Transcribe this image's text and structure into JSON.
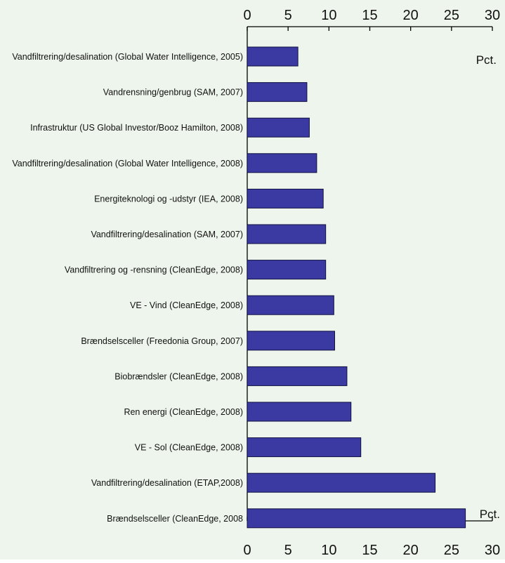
{
  "colors": {
    "background": "#eef5ec",
    "bar_fill": "#3b3aa3",
    "bar_stroke": "#101040",
    "axis": "#000000",
    "text": "#111111"
  },
  "chart_data": {
    "type": "bar",
    "orientation": "horizontal",
    "categories": [
      "Vandfiltrering/desalination (Global Water Intelligence, 2005)",
      "Vandrensning/genbrug (SAM, 2007)",
      "Infrastruktur (US Global Investor/Booz Hamilton, 2008)",
      "Vandfiltrering/desalination (Global Water Intelligence, 2008)",
      "Energiteknologi og -udstyr (IEA, 2008)",
      "Vandfiltrering/desalination (SAM, 2007)",
      "Vandfiltrering og -rensning (CleanEdge, 2008)",
      "VE - Vind (CleanEdge, 2008)",
      "Brændselsceller (Freedonia Group, 2007)",
      "Biobrændsler (CleanEdge, 2008)",
      "Ren energi (CleanEdge, 2008)",
      "VE - Sol (CleanEdge, 2008)",
      "Vandfiltrering/desalination (ETAP,2008)",
      "Brændselsceller (CleanEdge, 2008"
    ],
    "values": [
      6.2,
      7.3,
      7.6,
      8.5,
      9.3,
      9.6,
      9.6,
      10.6,
      10.7,
      12.2,
      12.7,
      13.9,
      23.0,
      26.7
    ],
    "xlim": [
      0,
      30
    ],
    "xticks": [
      "0",
      "5",
      "10",
      "15",
      "20",
      "25",
      "30"
    ],
    "unit_label": "Pct.",
    "grid": false,
    "legend": "none"
  }
}
